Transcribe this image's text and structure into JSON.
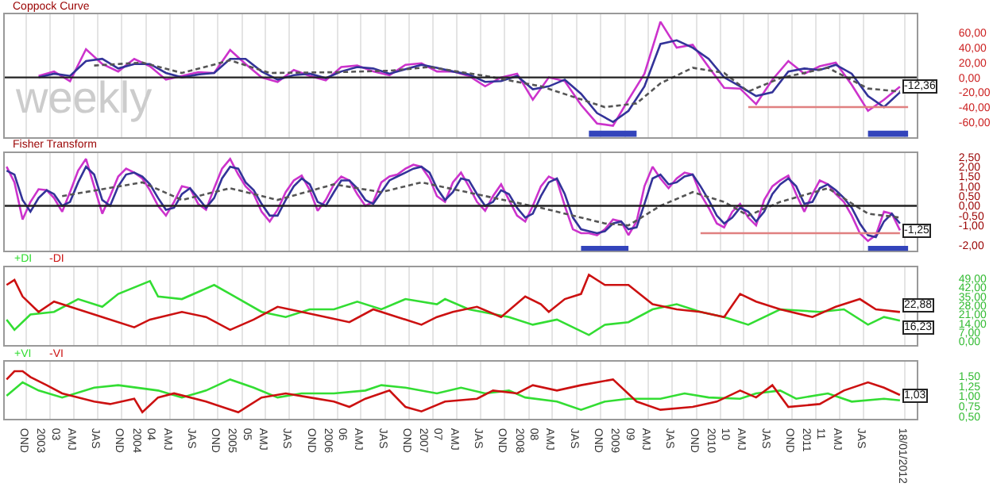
{
  "chart_data": [
    {
      "type": "line",
      "title": "Coppock Curve",
      "annotations": [
        "weekly"
      ],
      "x": [
        "2003-01",
        "2003-03",
        "2003-05",
        "2003-07",
        "2003-09",
        "2003-11",
        "2004-01",
        "2004-03",
        "2004-05",
        "2004-07",
        "2004-09",
        "2004-11",
        "2005-01",
        "2005-03",
        "2005-05",
        "2005-07",
        "2005-09",
        "2005-11",
        "2006-01",
        "2006-03",
        "2006-05",
        "2006-07",
        "2006-09",
        "2006-11",
        "2007-01",
        "2007-03",
        "2007-05",
        "2007-07",
        "2007-09",
        "2007-11",
        "2008-01",
        "2008-03",
        "2008-05",
        "2008-07",
        "2008-09",
        "2008-11",
        "2009-01",
        "2009-03",
        "2009-05",
        "2009-07",
        "2009-09",
        "2009-11",
        "2010-01",
        "2010-03",
        "2010-05",
        "2010-07",
        "2010-09",
        "2010-11",
        "2011-01",
        "2011-03",
        "2011-05",
        "2011-07",
        "2011-09",
        "2011-11",
        "2012-01"
      ],
      "series": [
        {
          "color": "#cc33cc",
          "values": [
            2,
            8,
            -5,
            38,
            18,
            8,
            25,
            15,
            -3,
            2,
            7,
            6,
            37,
            18,
            0,
            -6,
            10,
            2,
            -4,
            14,
            16,
            8,
            3,
            17,
            19,
            8,
            8,
            2,
            -12,
            0,
            5,
            -30,
            0,
            -5,
            -37,
            -62,
            -65,
            -30,
            5,
            75,
            40,
            44,
            14,
            -14,
            -15,
            -36,
            -3,
            22,
            5,
            15,
            20,
            -10,
            -45,
            -30,
            -12.36
          ],
          "value_labels": [
            null,
            null,
            null,
            null,
            null,
            null,
            null,
            null,
            null,
            null,
            null,
            null,
            null,
            null,
            null,
            null,
            null,
            null,
            null,
            null,
            null,
            null,
            null,
            null,
            null,
            null,
            null,
            null,
            null,
            null,
            null,
            null,
            null,
            null,
            null,
            null,
            null,
            null,
            null,
            null,
            null,
            null,
            null,
            null,
            null,
            null,
            null,
            null,
            null,
            null,
            null,
            null,
            null,
            null,
            "-12,36"
          ]
        },
        {
          "color": "#333399",
          "values": [
            0,
            5,
            2,
            22,
            25,
            12,
            18,
            18,
            6,
            0,
            4,
            6,
            25,
            25,
            8,
            -3,
            3,
            5,
            -1,
            8,
            14,
            12,
            5,
            11,
            17,
            13,
            8,
            4,
            -6,
            -5,
            2,
            -16,
            -12,
            -3,
            -22,
            -48,
            -60,
            -45,
            -12,
            45,
            50,
            40,
            25,
            0,
            -12,
            -25,
            -20,
            8,
            12,
            10,
            17,
            5,
            -25,
            -40,
            -20
          ]
        },
        {
          "color": "#555555",
          "line_style": "dashed",
          "x": [
            "2003-08",
            "2004-02",
            "2004-07",
            "2005-01",
            "2005-06",
            "2006-02",
            "2006-09",
            "2007-02",
            "2007-09",
            "2008-04",
            "2008-12",
            "2009-04",
            "2009-07",
            "2009-11",
            "2010-03",
            "2010-06",
            "2010-10",
            "2011-04",
            "2011-09",
            "2012-01"
          ],
          "values": [
            16,
            20,
            6,
            23,
            6,
            7,
            9,
            14,
            2,
            -12,
            -40,
            -35,
            -8,
            13,
            6,
            -19,
            -1,
            13,
            -15,
            -19
          ]
        },
        {
          "color": "#e08080",
          "x": [
            "2010-06",
            "2012-02"
          ],
          "values": [
            -40,
            -40
          ]
        }
      ],
      "ref_lines": [
        {
          "axis": "y",
          "value": 0,
          "color": "#222222"
        }
      ],
      "bands": [
        {
          "axis": "x",
          "from": "2008-10",
          "to": "2009-04",
          "color": "#3344bb"
        },
        {
          "axis": "x",
          "from": "2011-09",
          "to": "2012-02",
          "color": "#3344bb"
        }
      ],
      "xlim": [
        "2002-08-25",
        "2012-03-05"
      ],
      "xticks": [
        {
          "value": "2002-11-15",
          "label": null
        },
        {
          "value": "2003-02-15",
          "label": null
        },
        {
          "value": "2003-05-15",
          "label": null
        },
        {
          "value": "2003-08-15",
          "label": null
        },
        {
          "value": "2003-11-15",
          "label": null
        },
        {
          "value": "2004-02-15",
          "label": null
        },
        {
          "value": "2004-05-15",
          "label": null
        },
        {
          "value": "2004-08-15",
          "label": null
        },
        {
          "value": "2004-11-15",
          "label": null
        },
        {
          "value": "2005-02-15",
          "label": null
        },
        {
          "value": "2005-05-15",
          "label": null
        },
        {
          "value": "2005-08-15",
          "label": null
        },
        {
          "value": "2005-11-15",
          "label": null
        },
        {
          "value": "2006-02-15",
          "label": null
        },
        {
          "value": "2006-05-15",
          "label": null
        },
        {
          "value": "2006-08-15",
          "label": null
        },
        {
          "value": "2006-11-15",
          "label": null
        },
        {
          "value": "2007-02-15",
          "label": null
        },
        {
          "value": "2007-05-15",
          "label": null
        },
        {
          "value": "2007-08-15",
          "label": null
        },
        {
          "value": "2007-11-15",
          "label": null
        },
        {
          "value": "2008-02-15",
          "label": null
        },
        {
          "value": "2008-05-15",
          "label": null
        },
        {
          "value": "2008-08-15",
          "label": null
        },
        {
          "value": "2008-11-15",
          "label": null
        },
        {
          "value": "2009-02-15",
          "label": null
        },
        {
          "value": "2009-05-15",
          "label": null
        },
        {
          "value": "2009-08-15",
          "label": null
        },
        {
          "value": "2009-11-15",
          "label": null
        },
        {
          "value": "2010-02-15",
          "label": null
        },
        {
          "value": "2010-05-15",
          "label": null
        },
        {
          "value": "2010-08-15",
          "label": null
        },
        {
          "value": "2010-11-15",
          "label": null
        },
        {
          "value": "2011-02-15",
          "label": null
        },
        {
          "value": "2011-05-15",
          "label": null
        },
        {
          "value": "2011-08-15",
          "label": null
        },
        {
          "value": "2012-01-18",
          "label": null
        }
      ],
      "ylim": [
        -80,
        85
      ],
      "yticks": [
        {
          "value": 60,
          "label": "60,00"
        },
        {
          "value": 40,
          "label": "40,00"
        },
        {
          "value": 20,
          "label": "20,00"
        },
        {
          "value": 0,
          "label": "0,00"
        },
        {
          "value": -20,
          "label": "-20,00"
        },
        {
          "value": -40,
          "label": "-40,00"
        },
        {
          "value": -60,
          "label": "-60,00"
        }
      ],
      "grid": "x",
      "tick_labels": "y"
    },
    {
      "type": "line",
      "title": "Fisher Transform",
      "x": [
        "2002-09",
        "2002-10",
        "2002-11",
        "2002-12",
        "2003-01",
        "2003-02",
        "2003-03",
        "2003-04",
        "2003-05",
        "2003-06",
        "2003-07",
        "2003-08",
        "2003-09",
        "2003-10",
        "2003-11",
        "2003-12",
        "2004-01",
        "2004-02",
        "2004-03",
        "2004-04",
        "2004-05",
        "2004-06",
        "2004-07",
        "2004-08",
        "2004-09",
        "2004-10",
        "2004-11",
        "2004-12",
        "2005-01",
        "2005-02",
        "2005-03",
        "2005-04",
        "2005-05",
        "2005-06",
        "2005-07",
        "2005-08",
        "2005-09",
        "2005-10",
        "2005-11",
        "2005-12",
        "2006-01",
        "2006-02",
        "2006-03",
        "2006-04",
        "2006-05",
        "2006-06",
        "2006-07",
        "2006-08",
        "2006-09",
        "2006-10",
        "2006-11",
        "2006-12",
        "2007-01",
        "2007-02",
        "2007-03",
        "2007-04",
        "2007-05",
        "2007-06",
        "2007-07",
        "2007-08",
        "2007-09",
        "2007-10",
        "2007-11",
        "2007-12",
        "2008-01",
        "2008-02",
        "2008-03",
        "2008-04",
        "2008-05",
        "2008-06",
        "2008-07",
        "2008-08",
        "2008-09",
        "2008-10",
        "2008-11",
        "2008-12",
        "2009-01",
        "2009-02",
        "2009-03",
        "2009-04",
        "2009-05",
        "2009-06",
        "2009-07",
        "2009-08",
        "2009-09",
        "2009-10",
        "2009-11",
        "2009-12",
        "2010-01",
        "2010-02",
        "2010-03",
        "2010-04",
        "2010-05",
        "2010-06",
        "2010-07",
        "2010-08",
        "2010-09",
        "2010-10",
        "2010-11",
        "2010-12",
        "2011-01",
        "2011-02",
        "2011-03",
        "2011-04",
        "2011-05",
        "2011-06",
        "2011-07",
        "2011-08",
        "2011-09",
        "2011-10",
        "2011-11",
        "2011-12",
        "2012-01"
      ],
      "series": [
        {
          "color": "#cc33cc",
          "values": [
            2.0,
            1.2,
            -0.7,
            0.2,
            0.85,
            0.8,
            0.4,
            -0.3,
            0.7,
            1.8,
            2.4,
            1.0,
            -0.4,
            0.5,
            1.5,
            1.9,
            1.7,
            1.4,
            0.8,
            0.0,
            -0.5,
            0.2,
            1.0,
            0.9,
            0.1,
            -0.2,
            0.9,
            1.9,
            2.4,
            1.6,
            1.0,
            0.6,
            -0.3,
            -0.8,
            -0.2,
            0.7,
            1.3,
            1.55,
            0.8,
            -0.25,
            0.3,
            1.1,
            1.5,
            1.3,
            0.6,
            0.0,
            0.2,
            1.2,
            1.5,
            1.6,
            1.9,
            2.1,
            2.0,
            1.4,
            0.5,
            0.2,
            1.2,
            1.7,
            1.0,
            0.2,
            -0.25,
            0.5,
            1.1,
            0.3,
            -0.5,
            -0.8,
            0.0,
            1.0,
            1.5,
            1.3,
            0.0,
            -1.2,
            -1.4,
            -1.4,
            -1.5,
            -1.2,
            -0.7,
            -0.8,
            -1.5,
            -0.8,
            1.0,
            2.0,
            1.4,
            0.9,
            1.4,
            1.7,
            1.6,
            0.6,
            -0.1,
            -0.9,
            -1.1,
            -0.3,
            0.1,
            -0.6,
            -1.0,
            0.3,
            1.0,
            1.3,
            1.55,
            0.6,
            -0.3,
            0.6,
            1.3,
            1.1,
            0.6,
            0.2,
            -0.5,
            -1.4,
            -1.8,
            -1.5,
            -0.3,
            -0.4,
            -1.25
          ],
          "value_labels": [
            null,
            null,
            null,
            null,
            null,
            null,
            null,
            null,
            null,
            null,
            null,
            null,
            null,
            null,
            null,
            null,
            null,
            null,
            null,
            null,
            null,
            null,
            null,
            null,
            null,
            null,
            null,
            null,
            null,
            null,
            null,
            null,
            null,
            null,
            null,
            null,
            null,
            null,
            null,
            null,
            null,
            null,
            null,
            null,
            null,
            null,
            null,
            null,
            null,
            null,
            null,
            null,
            null,
            null,
            null,
            null,
            null,
            null,
            null,
            null,
            null,
            null,
            null,
            null,
            null,
            null,
            null,
            null,
            null,
            null,
            null,
            null,
            null,
            null,
            null,
            null,
            null,
            null,
            null,
            null,
            null,
            null,
            null,
            null,
            null,
            null,
            null,
            null,
            null,
            null,
            null,
            null,
            null,
            null,
            null,
            null,
            null,
            null,
            null,
            null,
            null,
            null,
            null,
            null,
            null,
            null,
            null,
            null,
            null,
            null,
            null,
            null,
            "-1,25"
          ]
        },
        {
          "color": "#333399",
          "values": [
            1.8,
            1.6,
            0.3,
            -0.3,
            0.4,
            0.8,
            0.6,
            0.0,
            0.2,
            1.2,
            2.0,
            1.6,
            0.3,
            0.0,
            1.0,
            1.6,
            1.7,
            1.5,
            1.1,
            0.4,
            -0.2,
            -0.1,
            0.6,
            0.9,
            0.4,
            -0.1,
            0.4,
            1.4,
            2.0,
            1.9,
            1.2,
            0.8,
            0.1,
            -0.5,
            -0.5,
            0.3,
            1.0,
            1.4,
            1.1,
            0.2,
            0.0,
            0.7,
            1.3,
            1.3,
            0.9,
            0.3,
            0.1,
            0.7,
            1.3,
            1.5,
            1.7,
            1.9,
            2.0,
            1.7,
            0.9,
            0.3,
            0.7,
            1.4,
            1.3,
            0.6,
            0.0,
            0.2,
            0.8,
            0.6,
            -0.1,
            -0.6,
            -0.4,
            0.5,
            1.2,
            1.4,
            0.6,
            -0.6,
            -1.2,
            -1.3,
            -1.4,
            -1.3,
            -0.9,
            -0.8,
            -1.2,
            -1.1,
            0.1,
            1.4,
            1.6,
            1.1,
            1.2,
            1.5,
            1.6,
            1.0,
            0.3,
            -0.5,
            -0.9,
            -0.6,
            -0.1,
            -0.3,
            -0.8,
            -0.3,
            0.6,
            1.1,
            1.4,
            1.0,
            0.1,
            0.2,
            0.9,
            1.1,
            0.8,
            0.4,
            -0.1,
            -0.9,
            -1.5,
            -1.6,
            -0.8,
            -0.4,
            -0.9
          ]
        },
        {
          "color": "#555555",
          "line_style": "dashed",
          "x": [
            "2003-04",
            "2004-02",
            "2004-07",
            "2005-01",
            "2005-07",
            "2006-02",
            "2006-08",
            "2007-01",
            "2007-09",
            "2008-04",
            "2008-12",
            "2009-03",
            "2009-07",
            "2009-11",
            "2010-03",
            "2010-06",
            "2010-10",
            "2011-04",
            "2011-09",
            "2012-01"
          ],
          "values": [
            0.5,
            1.2,
            0.3,
            0.9,
            0.3,
            1.1,
            0.7,
            1.2,
            0.5,
            -0.1,
            -0.9,
            -1.0,
            0.0,
            0.7,
            0.2,
            -0.5,
            0.2,
            0.9,
            -0.4,
            -0.6
          ]
        },
        {
          "color": "#e08080",
          "x": [
            "2009-12",
            "2012-01"
          ],
          "values": [
            -1.4,
            -1.4
          ]
        }
      ],
      "ref_lines": [
        {
          "axis": "y",
          "value": 0,
          "color": "#222222"
        }
      ],
      "bands": [
        {
          "axis": "x",
          "from": "2008-09",
          "to": "2009-03",
          "color": "#3344bb"
        },
        {
          "axis": "x",
          "from": "2011-09",
          "to": "2012-02",
          "color": "#3344bb"
        }
      ],
      "xlim": [
        "2002-08-25",
        "2012-03-05"
      ],
      "xticks": [
        {
          "value": "2002-11-15",
          "label": null
        },
        {
          "value": "2003-02-15",
          "label": null
        },
        {
          "value": "2003-05-15",
          "label": null
        },
        {
          "value": "2003-08-15",
          "label": null
        },
        {
          "value": "2003-11-15",
          "label": null
        },
        {
          "value": "2004-02-15",
          "label": null
        },
        {
          "value": "2004-05-15",
          "label": null
        },
        {
          "value": "2004-08-15",
          "label": null
        },
        {
          "value": "2004-11-15",
          "label": null
        },
        {
          "value": "2005-02-15",
          "label": null
        },
        {
          "value": "2005-05-15",
          "label": null
        },
        {
          "value": "2005-08-15",
          "label": null
        },
        {
          "value": "2005-11-15",
          "label": null
        },
        {
          "value": "2006-02-15",
          "label": null
        },
        {
          "value": "2006-05-15",
          "label": null
        },
        {
          "value": "2006-08-15",
          "label": null
        },
        {
          "value": "2006-11-15",
          "label": null
        },
        {
          "value": "2007-02-15",
          "label": null
        },
        {
          "value": "2007-05-15",
          "label": null
        },
        {
          "value": "2007-08-15",
          "label": null
        },
        {
          "value": "2007-11-15",
          "label": null
        },
        {
          "value": "2008-02-15",
          "label": null
        },
        {
          "value": "2008-05-15",
          "label": null
        },
        {
          "value": "2008-08-15",
          "label": null
        },
        {
          "value": "2008-11-15",
          "label": null
        },
        {
          "value": "2009-02-15",
          "label": null
        },
        {
          "value": "2009-05-15",
          "label": null
        },
        {
          "value": "2009-08-15",
          "label": null
        },
        {
          "value": "2009-11-15",
          "label": null
        },
        {
          "value": "2010-02-15",
          "label": null
        },
        {
          "value": "2010-05-15",
          "label": null
        },
        {
          "value": "2010-08-15",
          "label": null
        },
        {
          "value": "2010-11-15",
          "label": null
        },
        {
          "value": "2011-02-15",
          "label": null
        },
        {
          "value": "2011-05-15",
          "label": null
        },
        {
          "value": "2011-08-15",
          "label": null
        },
        {
          "value": "2012-01-18",
          "label": null
        }
      ],
      "ylim": [
        -2.3,
        2.7
      ],
      "yticks": [
        {
          "value": 2.5,
          "label": "2,50"
        },
        {
          "value": 2,
          "label": "2,00"
        },
        {
          "value": 1.5,
          "label": "1,50"
        },
        {
          "value": 1,
          "label": "1,00"
        },
        {
          "value": 0.5,
          "label": "0,50"
        },
        {
          "value": 0,
          "label": "0,00"
        },
        {
          "value": -0.5,
          "label": "-0,50"
        },
        {
          "value": -1,
          "label": "-1,00"
        },
        {
          "value": -2,
          "label": "-2,00"
        }
      ],
      "grid": "x",
      "tick_labels": "y"
    },
    {
      "type": "line",
      "series": [
        {
          "name": "+DI",
          "color": "#33dd33",
          "x": [
            "2002-09",
            "2002-10",
            "2002-12",
            "2003-03",
            "2003-06",
            "2003-09",
            "2003-11",
            "2004-03",
            "2004-04",
            "2004-07",
            "2004-11",
            "2005-01",
            "2005-05",
            "2005-08",
            "2005-11",
            "2006-02",
            "2006-05",
            "2006-08",
            "2006-11",
            "2007-03",
            "2007-04",
            "2007-07",
            "2007-12",
            "2008-03",
            "2008-06",
            "2008-10",
            "2008-12",
            "2009-03",
            "2009-06",
            "2009-09",
            "2009-12",
            "2010-03",
            "2010-06",
            "2010-10",
            "2011-03",
            "2011-06",
            "2011-09",
            "2011-11",
            "2012-01"
          ],
          "values": [
            17,
            9,
            21,
            23,
            33,
            27,
            37,
            47,
            35,
            33,
            44,
            37,
            23,
            19,
            25,
            25,
            31,
            25,
            33,
            29,
            33,
            25,
            19,
            13,
            17,
            5,
            13,
            15,
            25,
            29,
            23,
            19,
            13,
            25,
            23,
            25,
            13,
            19,
            16.23
          ],
          "value_labels": [
            null,
            null,
            null,
            null,
            null,
            null,
            null,
            null,
            null,
            null,
            null,
            null,
            null,
            null,
            null,
            null,
            null,
            null,
            null,
            null,
            null,
            null,
            null,
            null,
            null,
            null,
            null,
            null,
            null,
            null,
            null,
            null,
            null,
            null,
            null,
            null,
            null,
            null,
            "16,23"
          ]
        },
        {
          "name": "-DI",
          "color": "#cc1111",
          "x": [
            "2002-09",
            "2002-10",
            "2002-11",
            "2003-01",
            "2003-03",
            "2003-06",
            "2003-09",
            "2004-01",
            "2004-03",
            "2004-07",
            "2004-10",
            "2005-01",
            "2005-04",
            "2005-07",
            "2005-10",
            "2006-01",
            "2006-04",
            "2006-07",
            "2006-10",
            "2007-01",
            "2007-03",
            "2007-05",
            "2007-08",
            "2007-11",
            "2008-02",
            "2008-04",
            "2008-05",
            "2008-07",
            "2008-09",
            "2008-10",
            "2008-12",
            "2009-03",
            "2009-06",
            "2009-09",
            "2009-12",
            "2010-03",
            "2010-05",
            "2010-07",
            "2010-10",
            "2011-02",
            "2011-05",
            "2011-08",
            "2011-10",
            "2012-01"
          ],
          "values": [
            44,
            48,
            35,
            23,
            31,
            25,
            19,
            11,
            17,
            23,
            19,
            9,
            17,
            27,
            23,
            19,
            15,
            25,
            19,
            13,
            19,
            23,
            27,
            19,
            35,
            29,
            23,
            33,
            37,
            52,
            44,
            44,
            29,
            25,
            23,
            19,
            37,
            31,
            25,
            19,
            27,
            33,
            25,
            22.88
          ],
          "value_labels": [
            null,
            null,
            null,
            null,
            null,
            null,
            null,
            null,
            null,
            null,
            null,
            null,
            null,
            null,
            null,
            null,
            null,
            null,
            null,
            null,
            null,
            null,
            null,
            null,
            null,
            null,
            null,
            null,
            null,
            null,
            null,
            null,
            null,
            null,
            null,
            null,
            null,
            null,
            null,
            null,
            null,
            null,
            null,
            "22,88"
          ]
        }
      ],
      "xlim": [
        "2002-08-25",
        "2012-03-05"
      ],
      "xticks": [
        {
          "value": "2002-11-15",
          "label": null
        },
        {
          "value": "2003-02-15",
          "label": null
        },
        {
          "value": "2003-05-15",
          "label": null
        },
        {
          "value": "2003-08-15",
          "label": null
        },
        {
          "value": "2003-11-15",
          "label": null
        },
        {
          "value": "2004-02-15",
          "label": null
        },
        {
          "value": "2004-05-15",
          "label": null
        },
        {
          "value": "2004-08-15",
          "label": null
        },
        {
          "value": "2004-11-15",
          "label": null
        },
        {
          "value": "2005-02-15",
          "label": null
        },
        {
          "value": "2005-05-15",
          "label": null
        },
        {
          "value": "2005-08-15",
          "label": null
        },
        {
          "value": "2005-11-15",
          "label": null
        },
        {
          "value": "2006-02-15",
          "label": null
        },
        {
          "value": "2006-05-15",
          "label": null
        },
        {
          "value": "2006-08-15",
          "label": null
        },
        {
          "value": "2006-11-15",
          "label": null
        },
        {
          "value": "2007-02-15",
          "label": null
        },
        {
          "value": "2007-05-15",
          "label": null
        },
        {
          "value": "2007-08-15",
          "label": null
        },
        {
          "value": "2007-11-15",
          "label": null
        },
        {
          "value": "2008-02-15",
          "label": null
        },
        {
          "value": "2008-05-15",
          "label": null
        },
        {
          "value": "2008-08-15",
          "label": null
        },
        {
          "value": "2008-11-15",
          "label": null
        },
        {
          "value": "2009-02-15",
          "label": null
        },
        {
          "value": "2009-05-15",
          "label": null
        },
        {
          "value": "2009-08-15",
          "label": null
        },
        {
          "value": "2009-11-15",
          "label": null
        },
        {
          "value": "2010-02-15",
          "label": null
        },
        {
          "value": "2010-05-15",
          "label": null
        },
        {
          "value": "2010-08-15",
          "label": null
        },
        {
          "value": "2010-11-15",
          "label": null
        },
        {
          "value": "2011-02-15",
          "label": null
        },
        {
          "value": "2011-05-15",
          "label": null
        },
        {
          "value": "2011-08-15",
          "label": null
        },
        {
          "value": "2012-01-18",
          "label": null
        }
      ],
      "ylim": [
        -3,
        58
      ],
      "yticks": [
        {
          "value": 49,
          "label": "49,00"
        },
        {
          "value": 42,
          "label": "42,00"
        },
        {
          "value": 35,
          "label": "35,00"
        },
        {
          "value": 28,
          "label": "28,00"
        },
        {
          "value": 21,
          "label": "21,00"
        },
        {
          "value": 14,
          "label": "14,00"
        },
        {
          "value": 7,
          "label": "7,00"
        },
        {
          "value": 0,
          "label": "0,00"
        }
      ],
      "grid": "x",
      "tick_labels": "y"
    },
    {
      "type": "line",
      "series": [
        {
          "name": "+VI",
          "color": "#33dd33",
          "x": [
            "2002-09",
            "2002-11",
            "2003-01",
            "2003-04",
            "2003-08",
            "2003-11",
            "2004-04",
            "2004-07",
            "2004-10",
            "2005-01",
            "2005-04",
            "2005-07",
            "2005-10",
            "2006-02",
            "2006-06",
            "2006-08",
            "2006-11",
            "2007-03",
            "2007-06",
            "2007-09",
            "2007-12",
            "2008-02",
            "2008-06",
            "2008-09",
            "2008-12",
            "2009-03",
            "2009-07",
            "2009-10",
            "2010-01",
            "2010-05",
            "2010-07",
            "2010-10",
            "2010-12",
            "2011-04",
            "2011-07",
            "2011-11",
            "2012-01"
          ],
          "values": [
            1.01,
            1.34,
            1.14,
            0.97,
            1.21,
            1.27,
            1.14,
            0.97,
            1.14,
            1.41,
            1.21,
            0.97,
            1.07,
            1.07,
            1.14,
            1.27,
            1.21,
            1.07,
            1.21,
            1.07,
            1.14,
            0.97,
            0.87,
            0.67,
            0.87,
            0.94,
            0.94,
            1.07,
            0.97,
            0.94,
            1.07,
            1.14,
            0.94,
            1.07,
            0.87,
            0.94,
            0.9
          ]
        },
        {
          "name": "-VI",
          "color": "#cc1111",
          "x": [
            "2002-09",
            "2002-10",
            "2002-11",
            "2002-12",
            "2003-02",
            "2003-04",
            "2003-08",
            "2003-10",
            "2004-01",
            "2004-02",
            "2004-04",
            "2004-06",
            "2004-10",
            "2004-12",
            "2005-02",
            "2005-05",
            "2005-08",
            "2005-11",
            "2006-02",
            "2006-04",
            "2006-06",
            "2006-09",
            "2006-11",
            "2007-01",
            "2007-04",
            "2007-08",
            "2007-10",
            "2008-01",
            "2008-03",
            "2008-06",
            "2008-09",
            "2009-01",
            "2009-04",
            "2009-07",
            "2009-11",
            "2010-02",
            "2010-05",
            "2010-07",
            "2010-09",
            "2010-11",
            "2011-03",
            "2011-06",
            "2011-09",
            "2011-11",
            "2012-01"
          ],
          "values": [
            1.41,
            1.61,
            1.61,
            1.47,
            1.27,
            1.07,
            0.87,
            0.81,
            0.94,
            0.61,
            0.97,
            1.07,
            0.87,
            0.74,
            0.61,
            0.97,
            1.07,
            0.97,
            0.87,
            0.74,
            0.94,
            1.14,
            0.74,
            0.63,
            0.87,
            0.94,
            1.14,
            1.07,
            1.27,
            1.14,
            1.27,
            1.41,
            0.87,
            0.67,
            0.74,
            0.87,
            1.14,
            0.97,
            1.27,
            0.74,
            0.81,
            1.14,
            1.34,
            1.21,
            1.03
          ],
          "value_labels": [
            null,
            null,
            null,
            null,
            null,
            null,
            null,
            null,
            null,
            null,
            null,
            null,
            null,
            null,
            null,
            null,
            null,
            null,
            null,
            null,
            null,
            null,
            null,
            null,
            null,
            null,
            null,
            null,
            null,
            null,
            null,
            null,
            null,
            null,
            null,
            null,
            null,
            null,
            null,
            null,
            null,
            null,
            null,
            null,
            "1,03"
          ]
        }
      ],
      "xlim": [
        "2002-08-25",
        "2012-03-05"
      ],
      "xticks": [
        {
          "value": "2002-11-15",
          "label": "OND"
        },
        {
          "value": "2003-02-15",
          "label": "03\n2003"
        },
        {
          "value": "2003-05-15",
          "label": "AMJ"
        },
        {
          "value": "2003-08-15",
          "label": "JAS"
        },
        {
          "value": "2003-11-15",
          "label": "OND"
        },
        {
          "value": "2004-02-15",
          "label": "04\n2004"
        },
        {
          "value": "2004-05-15",
          "label": "AMJ"
        },
        {
          "value": "2004-08-15",
          "label": "JAS"
        },
        {
          "value": "2004-11-15",
          "label": "OND"
        },
        {
          "value": "2005-02-15",
          "label": "05\n2005"
        },
        {
          "value": "2005-05-15",
          "label": "AMJ"
        },
        {
          "value": "2005-08-15",
          "label": "JAS"
        },
        {
          "value": "2005-11-15",
          "label": "OND"
        },
        {
          "value": "2006-02-15",
          "label": "06\n2006"
        },
        {
          "value": "2006-05-15",
          "label": "AMJ"
        },
        {
          "value": "2006-08-15",
          "label": "JAS"
        },
        {
          "value": "2006-11-15",
          "label": "OND"
        },
        {
          "value": "2007-02-15",
          "label": "07\n2007"
        },
        {
          "value": "2007-05-15",
          "label": "AMJ"
        },
        {
          "value": "2007-08-15",
          "label": "JAS"
        },
        {
          "value": "2007-11-15",
          "label": "OND"
        },
        {
          "value": "2008-02-15",
          "label": "08\n2008"
        },
        {
          "value": "2008-05-15",
          "label": "AMJ"
        },
        {
          "value": "2008-08-15",
          "label": "JAS"
        },
        {
          "value": "2008-11-15",
          "label": "OND"
        },
        {
          "value": "2009-02-15",
          "label": "09\n2009"
        },
        {
          "value": "2009-05-15",
          "label": "AMJ"
        },
        {
          "value": "2009-08-15",
          "label": "JAS"
        },
        {
          "value": "2009-11-15",
          "label": "OND"
        },
        {
          "value": "2010-02-15",
          "label": "10\n2010"
        },
        {
          "value": "2010-05-15",
          "label": "AMJ"
        },
        {
          "value": "2010-08-15",
          "label": "JAS"
        },
        {
          "value": "2010-11-15",
          "label": "OND"
        },
        {
          "value": "2011-02-15",
          "label": "11\n2011"
        },
        {
          "value": "2011-05-15",
          "label": "AMJ"
        },
        {
          "value": "2011-08-15",
          "label": "JAS"
        },
        {
          "value": "2012-01-18",
          "label": "18/01/2012"
        }
      ],
      "ylim": [
        0.45,
        1.85
      ],
      "yticks": [
        {
          "value": 1.5,
          "label": "1,50"
        },
        {
          "value": 1.25,
          "label": "1,25"
        },
        {
          "value": 1,
          "label": "1,00"
        },
        {
          "value": 0.75,
          "label": "0,75"
        },
        {
          "value": 0.5,
          "label": "0,50"
        }
      ],
      "grid": "x"
    }
  ]
}
